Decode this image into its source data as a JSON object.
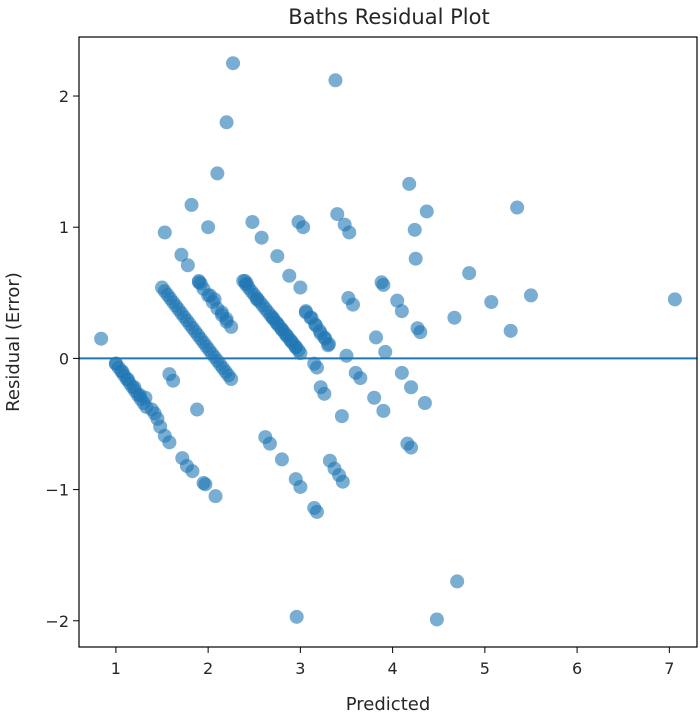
{
  "chart_data": {
    "type": "scatter",
    "title": "Baths Residual Plot",
    "xlabel": "Predicted",
    "ylabel": "Residual (Error)",
    "xlim": [
      0.6,
      7.3
    ],
    "ylim": [
      -2.2,
      2.45
    ],
    "x_ticks": [
      1,
      2,
      3,
      4,
      5,
      6,
      7
    ],
    "x_tick_labels": [
      "1",
      "2",
      "3",
      "4",
      "5",
      "6",
      "7"
    ],
    "y_ticks": [
      -2,
      -1,
      0,
      1,
      2
    ],
    "y_tick_labels": [
      "−2",
      "−1",
      "0",
      "1",
      "2"
    ],
    "grid": false,
    "point_color": "#1f77b4",
    "point_alpha": 0.6,
    "reference_line": {
      "y": 0,
      "color": "#1f77b4"
    },
    "bands": [
      {
        "x0": 1.0,
        "x1": 1.33,
        "slope": -1.0,
        "step": 0.03
      },
      {
        "x0": 1.5,
        "x1": 2.25,
        "slope": -0.93,
        "step": 0.03
      },
      {
        "x0": 2.38,
        "x1": 3.0,
        "slope": -0.88,
        "step": 0.03
      },
      {
        "x0": 2.7,
        "x1": 3.0,
        "slope": -0.9,
        "step": 0.05
      },
      {
        "x0": 3.06,
        "x1": 3.35,
        "slope": -1.0,
        "step": 0.05
      },
      {
        "x0": 1.9,
        "x1": 2.2,
        "slope": -1.0,
        "step": 0.05
      }
    ],
    "points": [
      [
        0.84,
        0.15
      ],
      [
        1.0,
        -0.04
      ],
      [
        1.07,
        -0.1
      ],
      [
        1.13,
        -0.16
      ],
      [
        1.2,
        -0.22
      ],
      [
        1.26,
        -0.28
      ],
      [
        1.32,
        -0.3
      ],
      [
        1.39,
        -0.39
      ],
      [
        1.42,
        -0.42
      ],
      [
        1.45,
        -0.46
      ],
      [
        1.48,
        -0.52
      ],
      [
        1.53,
        -0.59
      ],
      [
        1.58,
        -0.64
      ],
      [
        1.72,
        -0.76
      ],
      [
        1.77,
        -0.82
      ],
      [
        1.83,
        -0.86
      ],
      [
        1.95,
        -0.95
      ],
      [
        1.97,
        -0.96
      ],
      [
        2.08,
        -1.05
      ],
      [
        1.53,
        0.96
      ],
      [
        1.58,
        -0.12
      ],
      [
        1.62,
        -0.17
      ],
      [
        1.71,
        0.79
      ],
      [
        1.78,
        0.71
      ],
      [
        1.82,
        1.17
      ],
      [
        1.88,
        -0.39
      ],
      [
        1.9,
        0.59
      ],
      [
        1.92,
        0.57
      ],
      [
        2.0,
        1.0
      ],
      [
        2.02,
        0.48
      ],
      [
        2.07,
        0.45
      ],
      [
        2.1,
        1.41
      ],
      [
        2.2,
        1.8
      ],
      [
        2.27,
        2.25
      ],
      [
        2.15,
        0.35
      ],
      [
        2.2,
        0.3
      ],
      [
        2.25,
        0.24
      ],
      [
        2.4,
        0.59
      ],
      [
        2.42,
        0.57
      ],
      [
        2.48,
        1.04
      ],
      [
        2.53,
        0.45
      ],
      [
        2.58,
        0.92
      ],
      [
        2.62,
        -0.6
      ],
      [
        2.67,
        -0.65
      ],
      [
        2.75,
        0.78
      ],
      [
        2.8,
        -0.77
      ],
      [
        2.88,
        0.63
      ],
      [
        2.95,
        -0.92
      ],
      [
        2.98,
        1.04
      ],
      [
        3.0,
        0.54
      ],
      [
        3.03,
        1.0
      ],
      [
        3.0,
        -0.98
      ],
      [
        2.96,
        -1.97
      ],
      [
        3.15,
        -1.14
      ],
      [
        3.18,
        -1.17
      ],
      [
        3.06,
        0.35
      ],
      [
        3.12,
        0.31
      ],
      [
        3.17,
        0.25
      ],
      [
        3.22,
        0.19
      ],
      [
        3.27,
        0.15
      ],
      [
        3.15,
        -0.04
      ],
      [
        3.18,
        -0.07
      ],
      [
        3.22,
        -0.22
      ],
      [
        3.26,
        -0.27
      ],
      [
        3.3,
        0.1
      ],
      [
        3.32,
        -0.78
      ],
      [
        3.37,
        -0.84
      ],
      [
        3.42,
        -0.89
      ],
      [
        3.46,
        -0.94
      ],
      [
        3.38,
        2.12
      ],
      [
        3.4,
        1.1
      ],
      [
        3.48,
        1.02
      ],
      [
        3.53,
        0.96
      ],
      [
        3.45,
        -0.44
      ],
      [
        3.5,
        0.02
      ],
      [
        3.52,
        0.46
      ],
      [
        3.57,
        0.41
      ],
      [
        3.6,
        -0.11
      ],
      [
        3.65,
        -0.15
      ],
      [
        3.82,
        0.16
      ],
      [
        3.8,
        -0.3
      ],
      [
        3.88,
        0.58
      ],
      [
        3.9,
        0.56
      ],
      [
        3.9,
        -0.4
      ],
      [
        3.92,
        0.05
      ],
      [
        4.05,
        0.44
      ],
      [
        4.1,
        0.36
      ],
      [
        4.1,
        -0.11
      ],
      [
        4.16,
        -0.65
      ],
      [
        4.18,
        1.33
      ],
      [
        4.2,
        -0.68
      ],
      [
        4.2,
        -0.22
      ],
      [
        4.24,
        0.98
      ],
      [
        4.25,
        0.76
      ],
      [
        4.27,
        0.23
      ],
      [
        4.3,
        0.2
      ],
      [
        4.35,
        -0.34
      ],
      [
        4.37,
        1.12
      ],
      [
        4.48,
        -1.99
      ],
      [
        4.67,
        0.31
      ],
      [
        4.7,
        -1.7
      ],
      [
        4.83,
        0.65
      ],
      [
        5.07,
        0.43
      ],
      [
        5.28,
        0.21
      ],
      [
        5.35,
        1.15
      ],
      [
        5.5,
        0.48
      ],
      [
        7.06,
        0.45
      ]
    ]
  }
}
